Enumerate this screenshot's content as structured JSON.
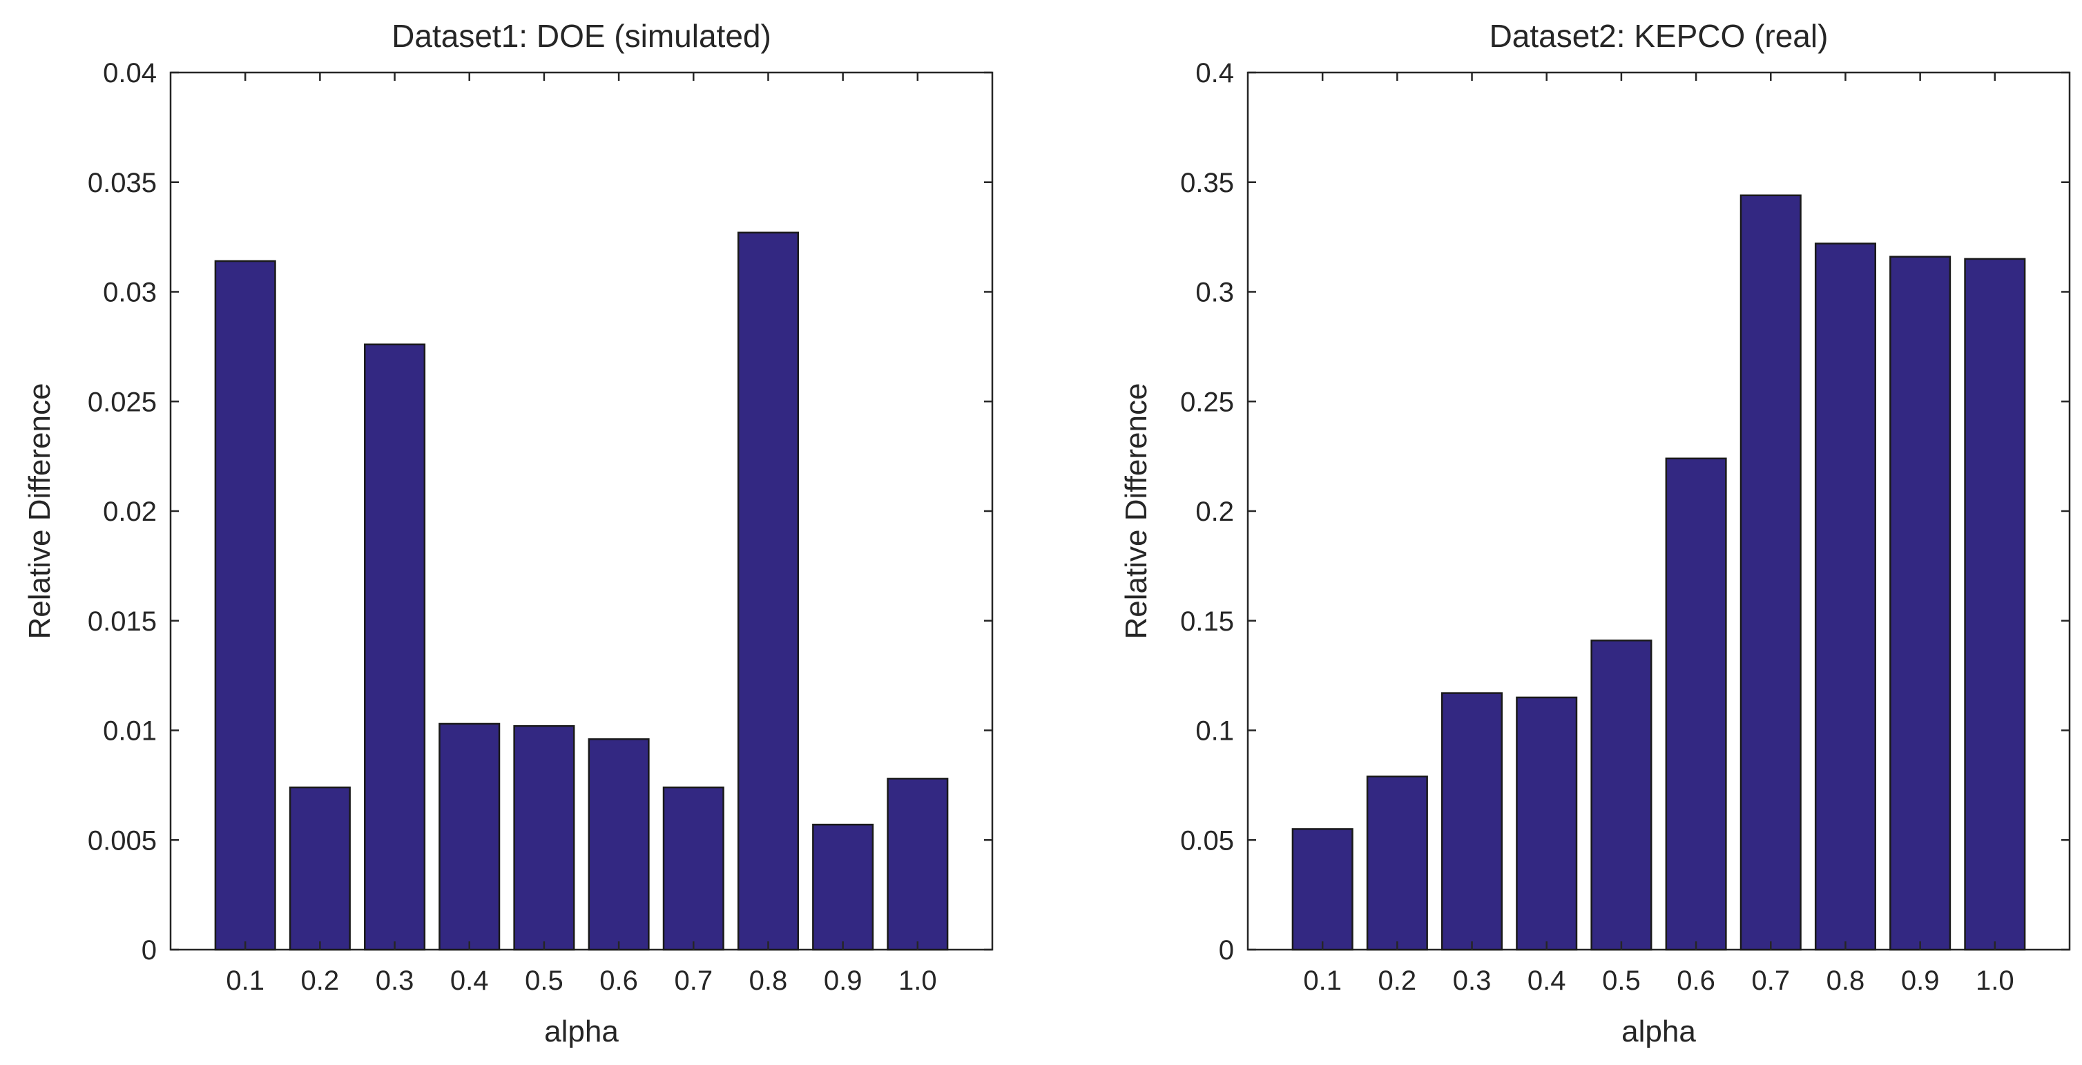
{
  "chart_data": [
    {
      "type": "bar",
      "title": "Dataset1: DOE (simulated)",
      "xlabel": "alpha",
      "ylabel": "Relative Difference",
      "categories": [
        "0.1",
        "0.2",
        "0.3",
        "0.4",
        "0.5",
        "0.6",
        "0.7",
        "0.8",
        "0.9",
        "1.0"
      ],
      "values": [
        0.0314,
        0.0074,
        0.0276,
        0.0103,
        0.0102,
        0.0096,
        0.0074,
        0.0327,
        0.0057,
        0.0078
      ],
      "ylim": [
        0,
        0.04
      ],
      "yticks": [
        0,
        0.005,
        0.01,
        0.015,
        0.02,
        0.025,
        0.03,
        0.035,
        0.04
      ],
      "ytick_labels": [
        "0",
        "0.005",
        "0.01",
        "0.015",
        "0.02",
        "0.025",
        "0.03",
        "0.035",
        "0.04"
      ],
      "bar_color": "#332882",
      "grid": false,
      "legend": null
    },
    {
      "type": "bar",
      "title": "Dataset2: KEPCO (real)",
      "xlabel": "alpha",
      "ylabel": "Relative Difference",
      "categories": [
        "0.1",
        "0.2",
        "0.3",
        "0.4",
        "0.5",
        "0.6",
        "0.7",
        "0.8",
        "0.9",
        "1.0"
      ],
      "values": [
        0.055,
        0.079,
        0.117,
        0.115,
        0.141,
        0.224,
        0.344,
        0.322,
        0.316,
        0.315
      ],
      "ylim": [
        0,
        0.4
      ],
      "yticks": [
        0,
        0.05,
        0.1,
        0.15,
        0.2,
        0.25,
        0.3,
        0.35,
        0.4
      ],
      "ytick_labels": [
        "0",
        "0.05",
        "0.1",
        "0.15",
        "0.2",
        "0.25",
        "0.3",
        "0.35",
        "0.4"
      ],
      "bar_color": "#332882",
      "grid": false,
      "legend": null
    }
  ]
}
